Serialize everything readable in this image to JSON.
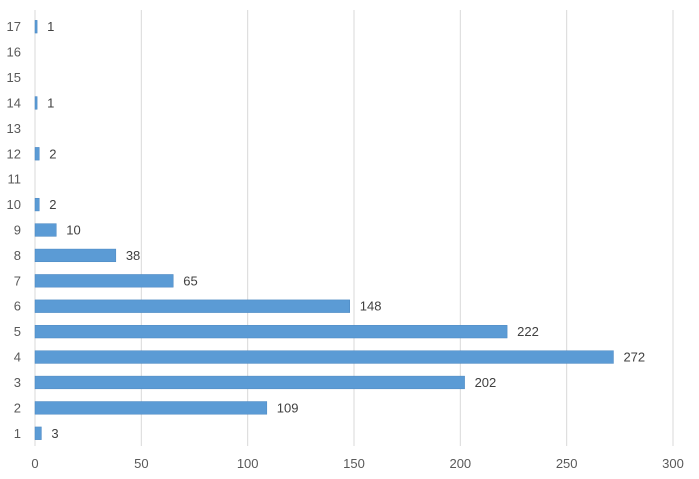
{
  "chart_data": {
    "type": "bar",
    "orientation": "horizontal",
    "categories": [
      "1",
      "2",
      "3",
      "4",
      "5",
      "6",
      "7",
      "8",
      "9",
      "10",
      "11",
      "12",
      "13",
      "14",
      "15",
      "16",
      "17"
    ],
    "values": [
      3,
      109,
      202,
      272,
      222,
      148,
      65,
      38,
      10,
      2,
      null,
      2,
      null,
      1,
      null,
      null,
      1
    ],
    "data_labels": [
      "3",
      "109",
      "202",
      "272",
      "222",
      "148",
      "65",
      "38",
      "10",
      "2",
      "",
      "2",
      "",
      "1",
      "",
      "",
      "1"
    ],
    "x_ticks": [
      "0",
      "50",
      "100",
      "150",
      "200",
      "250",
      "300"
    ],
    "xlim": [
      0,
      300
    ],
    "title": "",
    "xlabel": "",
    "ylabel": "",
    "grid": "vertical",
    "legend": "none",
    "colors": {
      "bar": "#5b9bd5",
      "bar_edge": "#4a86c0",
      "grid": "#d9d9d9",
      "text": "#595959"
    }
  }
}
